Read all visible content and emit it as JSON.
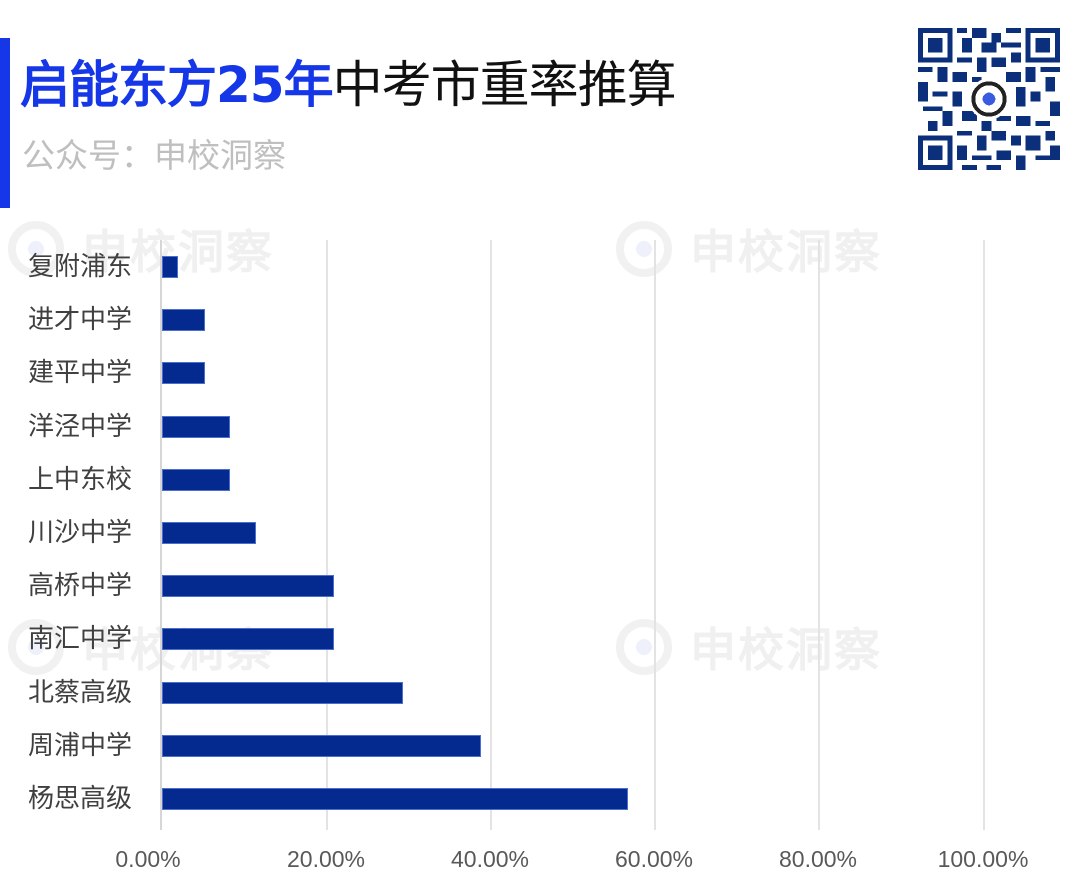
{
  "header": {
    "title_highlight": "启能东方25年",
    "title_rest": "中考市重率推算",
    "subtitle": "公众号：申校洞察",
    "accent_color": "#1537e8"
  },
  "watermark": {
    "text": "申校洞察"
  },
  "qr_code": {
    "label": "qr-code"
  },
  "chart_data": {
    "type": "bar",
    "orientation": "horizontal",
    "title": "启能东方25年中考市重率推算",
    "subtitle": "公众号：申校洞察",
    "xlabel": "",
    "ylabel": "",
    "xlim": [
      0,
      100
    ],
    "grid": true,
    "bar_color": "#042a8f",
    "x_ticks": [
      "0.00%",
      "20.00%",
      "40.00%",
      "60.00%",
      "80.00%",
      "100.00%"
    ],
    "categories": [
      "复附浦东",
      "进才中学",
      "建平中学",
      "洋泾中学",
      "上中东校",
      "川沙中学",
      "高桥中学",
      "南汇中学",
      "北蔡高级",
      "周浦中学",
      "杨思高级"
    ],
    "values": [
      2.0,
      5.2,
      5.2,
      8.3,
      8.3,
      11.4,
      21.0,
      21.0,
      29.3,
      38.8,
      56.8
    ]
  }
}
